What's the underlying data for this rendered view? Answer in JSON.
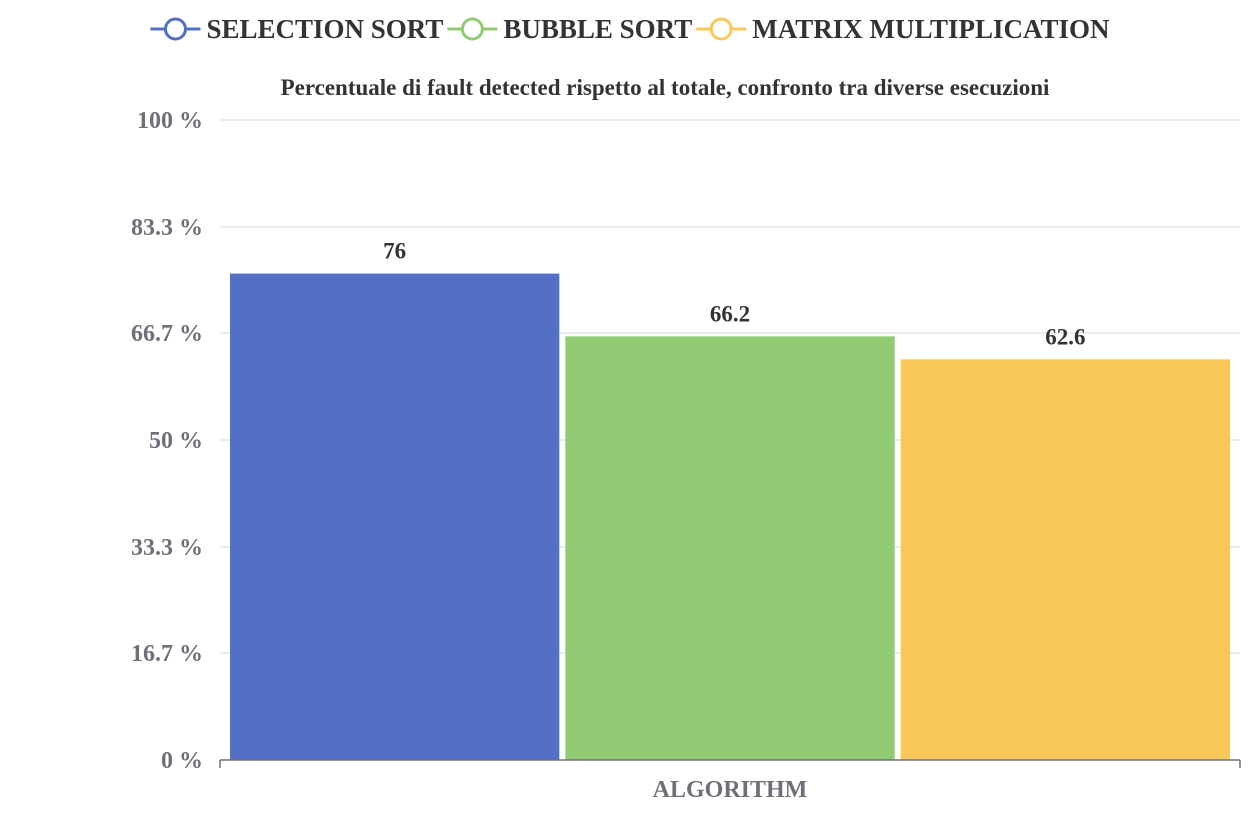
{
  "chart_data": {
    "type": "bar",
    "title": "Percentuale di fault detected rispetto al totale, confronto tra diverse esecuzioni",
    "categories": [
      "ALGORITHM"
    ],
    "series": [
      {
        "name": "SELECTION SORT",
        "values": [
          76
        ],
        "label": "76",
        "color": "#5470c6"
      },
      {
        "name": "BUBBLE SORT",
        "values": [
          66.2
        ],
        "label": "66.2",
        "color": "#91cc75"
      },
      {
        "name": "MATRIX MULTIPLICATION",
        "values": [
          62.6
        ],
        "label": "62.6",
        "color": "#fac858"
      }
    ],
    "ylim": [
      0,
      100
    ],
    "yticks": [
      {
        "value": 0,
        "label": "0 %"
      },
      {
        "value": 16.7,
        "label": "16.7 %"
      },
      {
        "value": 33.3,
        "label": "33.3 %"
      },
      {
        "value": 50,
        "label": "50 %"
      },
      {
        "value": 66.7,
        "label": "66.7 %"
      },
      {
        "value": 83.3,
        "label": "83.3 %"
      },
      {
        "value": 100,
        "label": "100 %"
      }
    ],
    "grid": true,
    "legend_position": "top",
    "xlabel": "",
    "ylabel": ""
  }
}
